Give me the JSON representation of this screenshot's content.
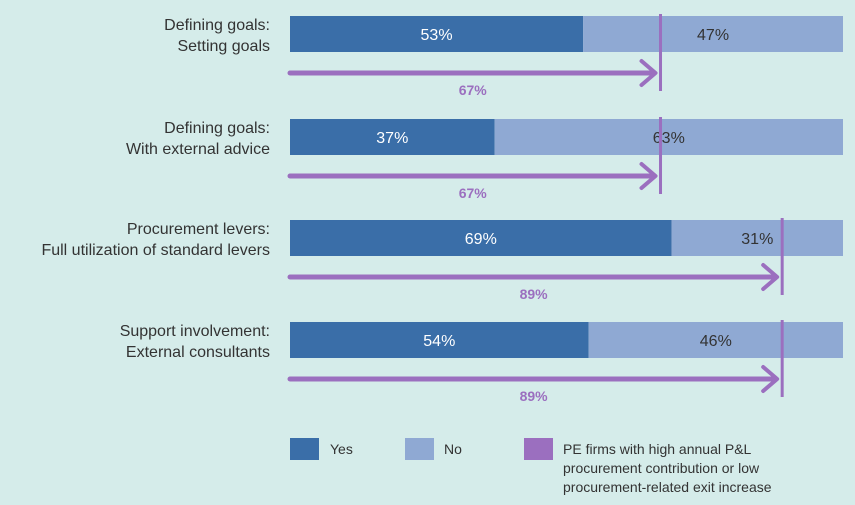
{
  "chart_data": {
    "type": "bar",
    "orientation": "horizontal",
    "stacked": true,
    "categories": [
      [
        "Defining goals:",
        "Setting goals"
      ],
      [
        "Defining goals:",
        "With external advice"
      ],
      [
        "Procurement levers:",
        "Full utilization of standard levers"
      ],
      [
        "Support involvement:",
        "External consultants"
      ]
    ],
    "series": [
      {
        "name": "Yes",
        "values": [
          53,
          37,
          69,
          54
        ],
        "color": "#3a6ea8",
        "labels": [
          "53%",
          "37%",
          "69%",
          "54%"
        ]
      },
      {
        "name": "No",
        "values": [
          47,
          63,
          31,
          46
        ],
        "color": "#8fa9d3",
        "labels": [
          "47%",
          "63%",
          "31%",
          "46%"
        ]
      }
    ],
    "high_contribution_marker": {
      "name": "PE firms with high annual P&L procurement contribution or low procurement-related exit increase",
      "values": [
        67,
        67,
        89,
        89
      ],
      "labels": [
        "67%",
        "67%",
        "89%",
        "89%"
      ],
      "color": "#9b6fbf"
    },
    "xlim": [
      0,
      100
    ],
    "grid": false,
    "legend_position": "bottom"
  },
  "legend": [
    {
      "label_lines": [
        "Yes"
      ],
      "color": "#3a6ea8"
    },
    {
      "label_lines": [
        "No"
      ],
      "color": "#8fa9d3"
    },
    {
      "label_lines": [
        "PE firms with high annual P&L",
        "procurement contribution or low",
        "procurement-related exit increase"
      ],
      "color": "#9b6fbf"
    }
  ],
  "colors": {
    "background": "#d5ecea",
    "yes_text": "#ffffff",
    "no_text": "#333333",
    "marker": "#9b6fbf"
  }
}
